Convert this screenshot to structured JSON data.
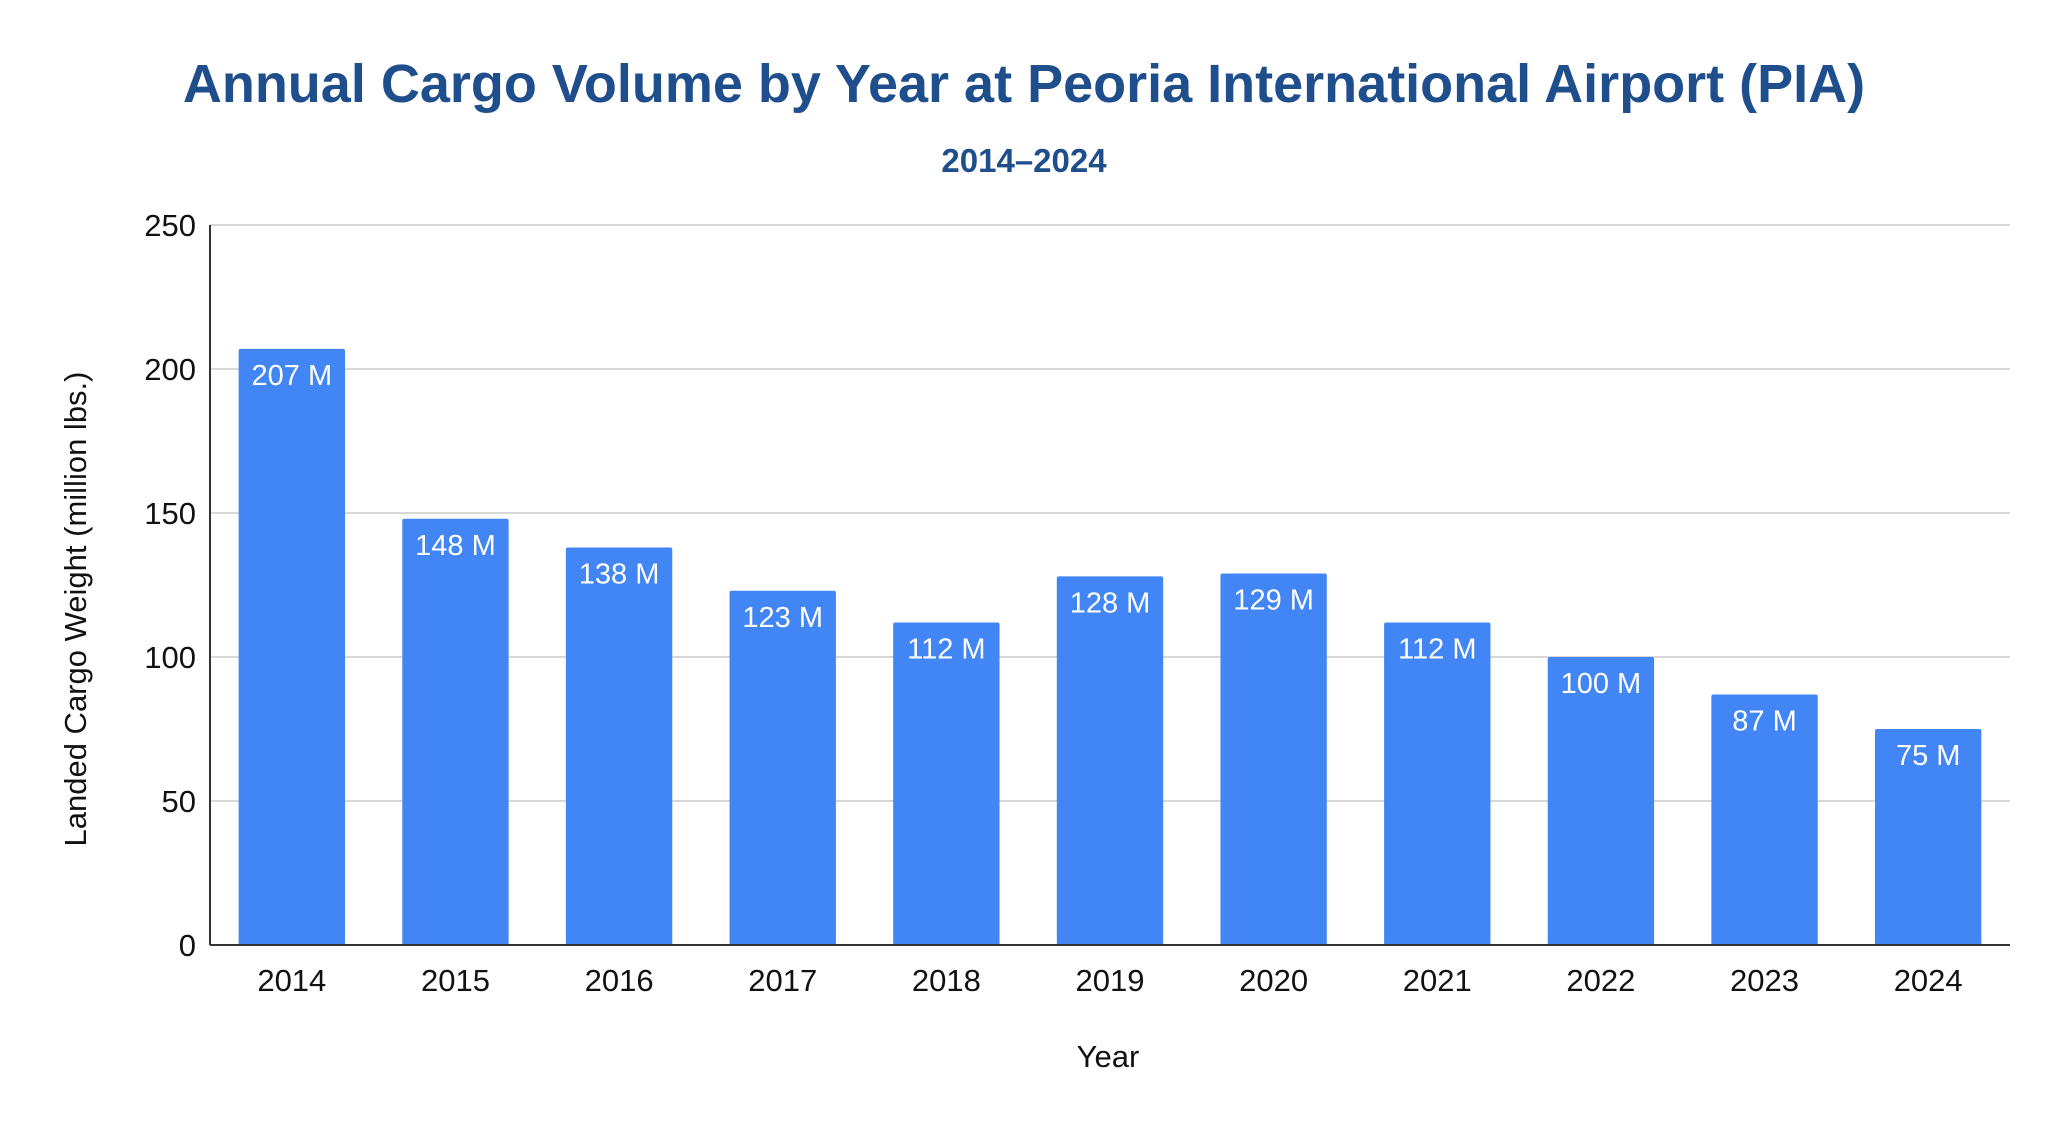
{
  "chart_data": {
    "type": "bar",
    "title": "Annual Cargo Volume by Year at Peoria International Airport (PIA)",
    "subtitle": "2014–2024",
    "xlabel": "Year",
    "ylabel": "Landed Cargo Weight (million lbs.)",
    "categories": [
      "2014",
      "2015",
      "2016",
      "2017",
      "2018",
      "2019",
      "2020",
      "2021",
      "2022",
      "2023",
      "2024"
    ],
    "values": [
      207,
      148,
      138,
      123,
      112,
      128,
      129,
      112,
      100,
      87,
      75
    ],
    "data_labels": [
      "207 M",
      "148 M",
      "138 M",
      "123 M",
      "112 M",
      "128 M",
      "129 M",
      "112 M",
      "100 M",
      "87 M",
      "75 M"
    ],
    "ylim": [
      0,
      250
    ],
    "yticks": [
      0,
      50,
      100,
      150,
      200,
      250
    ],
    "grid": true,
    "legend": "none",
    "bar_color": "#4285f4",
    "title_color": "#1f4e8c"
  }
}
